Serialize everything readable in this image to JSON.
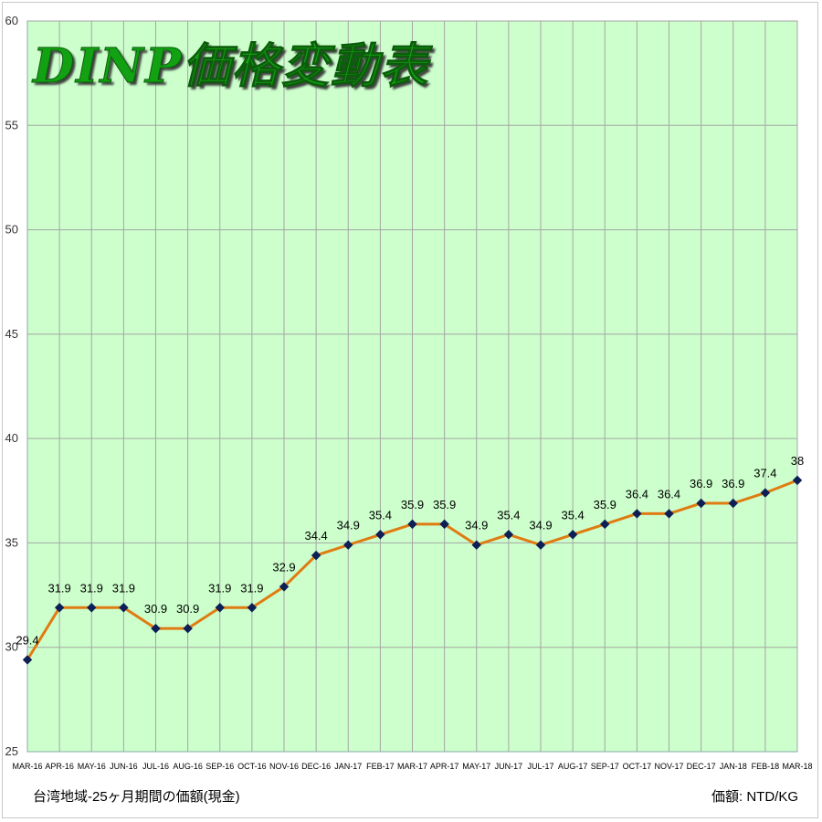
{
  "chart_data": {
    "type": "line",
    "title": "DINP価格変動表",
    "xlabel": "",
    "ylabel": "",
    "ylim": [
      25,
      60
    ],
    "yticks": [
      25,
      30,
      35,
      40,
      45,
      50,
      55,
      60
    ],
    "grid": true,
    "categories": [
      "MAR-16",
      "APR-16",
      "MAY-16",
      "JUN-16",
      "JUL-16",
      "AUG-16",
      "SEP-16",
      "OCT-16",
      "NOV-16",
      "DEC-16",
      "JAN-17",
      "FEB-17",
      "MAR-17",
      "APR-17",
      "MAY-17",
      "JUN-17",
      "JUL-17",
      "AUG-17",
      "SEP-17",
      "OCT-17",
      "NOV-17",
      "DEC-17",
      "JAN-18",
      "FEB-18",
      "MAR-18"
    ],
    "series": [
      {
        "values": [
          29.4,
          31.9,
          31.9,
          31.9,
          30.9,
          30.9,
          31.9,
          31.9,
          32.9,
          34.4,
          34.9,
          35.4,
          35.9,
          35.9,
          34.9,
          35.4,
          34.9,
          35.4,
          35.9,
          36.4,
          36.4,
          36.9,
          36.9,
          37.4,
          38
        ],
        "labels": [
          "29.4",
          "31.9",
          "31.9",
          "31.9",
          "30.9",
          "30.9",
          "31.9",
          "31.9",
          "32.9",
          "34.4",
          "34.9",
          "35.4",
          "35.9",
          "35.9",
          "34.9",
          "35.4",
          "34.9",
          "35.4",
          "35.9",
          "36.4",
          "36.4",
          "36.9",
          "36.9",
          "37.4",
          "38"
        ]
      }
    ],
    "footnote_left": "台湾地域-25ヶ月期間の価額(現金)",
    "footnote_right": "価額: NTD/KG"
  },
  "colors": {
    "plot_bg": "#ccffcc",
    "grid": "#a6a6a6",
    "line": "#e07b12",
    "marker": "#0d1f55",
    "title": "#12a112"
  }
}
